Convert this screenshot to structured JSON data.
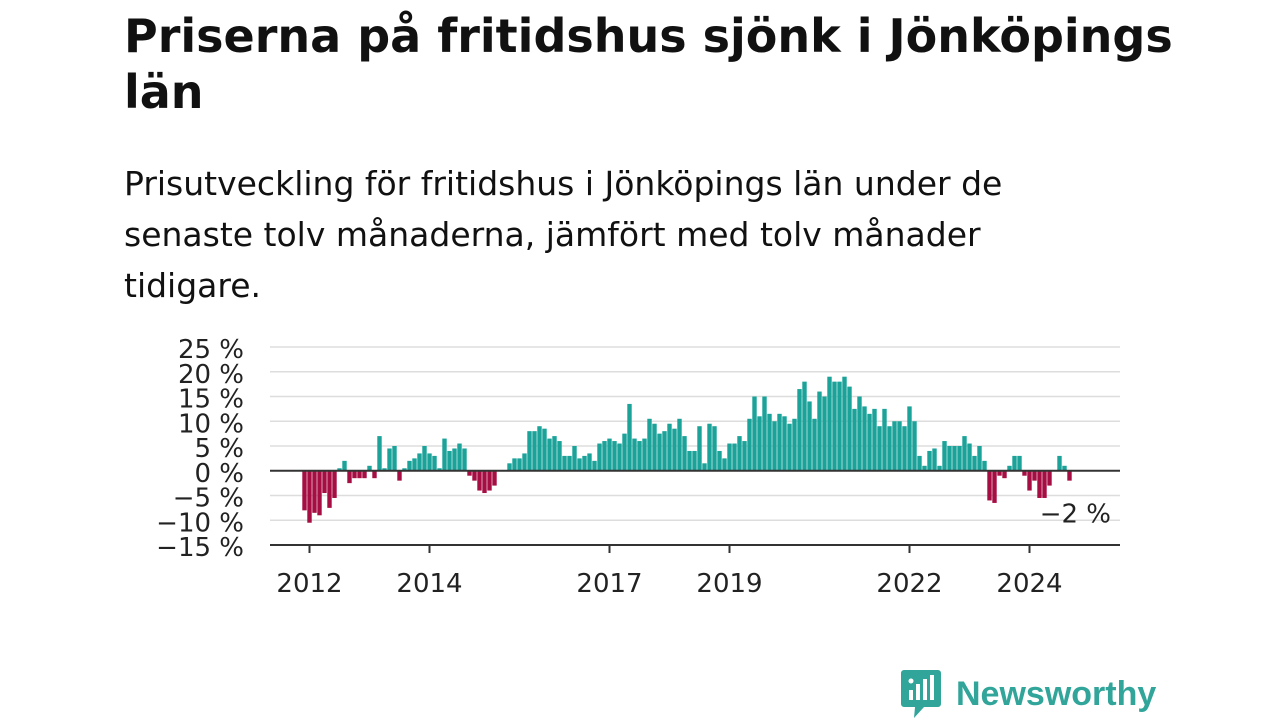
{
  "title": "Priserna på fritidshus sjönk i Jönköpings län",
  "subtitle": "Prisutveckling för fritidshus i Jönköpings län under de senaste tolv månaderna, jämfört med tolv månader tidigare.",
  "brand": {
    "name": "Newsworthy",
    "color": "#31a59a"
  },
  "colors": {
    "positive": "#1ba39a",
    "negative": "#a50d43",
    "grid": "#dddddd",
    "axis": "#333333",
    "text": "#222222"
  },
  "chart_data": {
    "type": "bar",
    "ylim": [
      -15,
      25
    ],
    "yticks": [
      -15,
      -10,
      -5,
      0,
      5,
      10,
      15,
      20,
      25
    ],
    "ytick_labels": [
      "−15 %",
      "−10 %",
      "−5 %",
      "0 %",
      "5 %",
      "10 %",
      "15 %",
      "20 %",
      "25 %"
    ],
    "xtick_labels": [
      "2012",
      "2014",
      "2017",
      "2019",
      "2022",
      "2024"
    ],
    "start": "2011-05",
    "last_label": "−2 %",
    "grid": true,
    "values": [
      0.0,
      0.0,
      0.0,
      0.0,
      0.0,
      0.0,
      0.0,
      -8.0,
      -10.5,
      -8.5,
      -9.0,
      -4.5,
      -7.5,
      -5.5,
      0.5,
      2.0,
      -2.5,
      -1.5,
      -1.5,
      -1.5,
      1.0,
      -1.5,
      7.0,
      0.5,
      4.5,
      5.0,
      -2.0,
      0.5,
      2.0,
      2.5,
      3.5,
      5.0,
      3.5,
      3.0,
      0.5,
      6.5,
      4.0,
      4.5,
      5.5,
      4.5,
      -1.0,
      -2.0,
      -4.0,
      -4.5,
      -4.0,
      -3.0,
      0.0,
      0.0,
      1.5,
      2.5,
      2.5,
      3.5,
      8.0,
      8.0,
      9.0,
      8.5,
      6.5,
      7.0,
      6.0,
      3.0,
      3.0,
      5.0,
      2.5,
      3.0,
      3.5,
      2.0,
      5.5,
      6.0,
      6.5,
      6.0,
      5.5,
      7.5,
      13.5,
      6.5,
      6.0,
      6.5,
      10.5,
      9.5,
      7.5,
      8.0,
      9.5,
      8.5,
      10.5,
      7.0,
      4.0,
      4.0,
      9.0,
      1.5,
      9.5,
      9.0,
      4.0,
      2.5,
      5.5,
      5.5,
      7.0,
      6.0,
      10.5,
      15.0,
      11.0,
      15.0,
      11.5,
      10.0,
      11.5,
      11.0,
      9.5,
      10.5,
      16.5,
      18.0,
      14.0,
      10.5,
      16.0,
      15.0,
      19.0,
      18.0,
      18.0,
      19.0,
      17.0,
      12.5,
      15.0,
      13.0,
      11.5,
      12.5,
      9.0,
      12.5,
      9.0,
      10.0,
      10.0,
      9.0,
      13.0,
      10.0,
      3.0,
      1.0,
      4.0,
      4.5,
      1.0,
      6.0,
      5.0,
      5.0,
      5.0,
      7.0,
      5.5,
      3.0,
      5.0,
      2.0,
      -6.0,
      -6.5,
      -1.0,
      -1.5,
      1.0,
      3.0,
      3.0,
      -1.0,
      -4.0,
      -2.0,
      -5.5,
      -5.5,
      -3.0,
      0.0,
      3.0,
      1.0,
      -2.0
    ]
  }
}
